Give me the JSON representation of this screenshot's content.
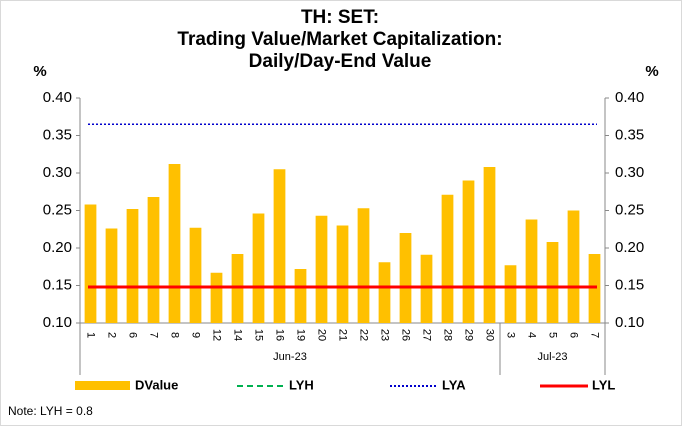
{
  "chart_data": {
    "type": "bar",
    "title": [
      "TH: SET:",
      "Trading Value/Market Capitalization:",
      "Daily/Day-End Value"
    ],
    "y_label": "%",
    "y2_label": "%",
    "categories": [
      "1",
      "2",
      "6",
      "7",
      "8",
      "9",
      "12",
      "14",
      "15",
      "16",
      "19",
      "20",
      "21",
      "22",
      "23",
      "26",
      "27",
      "28",
      "29",
      "30",
      "3",
      "4",
      "5",
      "6",
      "7"
    ],
    "groups": [
      {
        "label": "Jun-23",
        "start": 0,
        "count": 20
      },
      {
        "label": "Jul-23",
        "start": 20,
        "count": 5
      }
    ],
    "series": [
      {
        "name": "DValue",
        "color": "#ffc000",
        "values": [
          0.258,
          0.226,
          0.252,
          0.268,
          0.312,
          0.227,
          0.167,
          0.192,
          0.246,
          0.305,
          0.172,
          0.243,
          0.23,
          0.253,
          0.181,
          0.22,
          0.191,
          0.271,
          0.29,
          0.308,
          0.177,
          0.238,
          0.208,
          0.25,
          0.192
        ]
      }
    ],
    "lines": [
      {
        "name": "LYH",
        "color": "#00b050",
        "style": "dashed",
        "value": 0.8
      },
      {
        "name": "LYA",
        "color": "#0000cc",
        "style": "dotted",
        "value": 0.365
      },
      {
        "name": "LYL",
        "color": "#ff0000",
        "style": "solid",
        "value": 0.148
      }
    ],
    "ylim": [
      0.1,
      0.4
    ],
    "yticks": [
      {
        "value": 0.1,
        "label": "0.10"
      },
      {
        "value": 0.15,
        "label": "0.15"
      },
      {
        "value": 0.2,
        "label": "0.20"
      },
      {
        "value": 0.25,
        "label": "0.25"
      },
      {
        "value": 0.3,
        "label": "0.30"
      },
      {
        "value": 0.35,
        "label": "0.35"
      },
      {
        "value": 0.4,
        "label": "0.40"
      }
    ],
    "y2lim": [
      0.1,
      0.4
    ],
    "y2ticks": [
      {
        "value": 0.1,
        "label": "0.10"
      },
      {
        "value": 0.15,
        "label": "0.15"
      },
      {
        "value": 0.2,
        "label": "0.20"
      },
      {
        "value": 0.25,
        "label": "0.25"
      },
      {
        "value": 0.3,
        "label": "0.30"
      },
      {
        "value": 0.35,
        "label": "0.35"
      },
      {
        "value": 0.4,
        "label": "0.40"
      }
    ],
    "note": "Note: LYH = 0.8"
  }
}
